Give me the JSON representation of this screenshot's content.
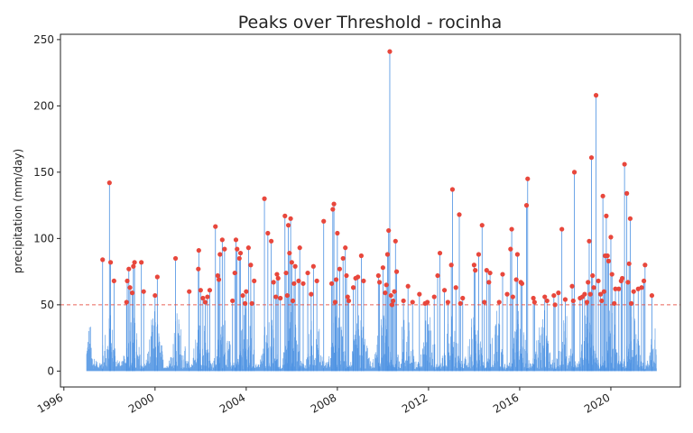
{
  "chart_data": {
    "type": "line",
    "title": "Peaks over Threshold - rocinha",
    "xlabel": "",
    "ylabel": "precipitation (mm/day)",
    "xlim": [
      1995.85,
      2023.05
    ],
    "ylim": [
      -12,
      254
    ],
    "x_ticks": [
      1996,
      2000,
      2004,
      2008,
      2012,
      2016,
      2020
    ],
    "x_tick_labels": [
      "1996",
      "2000",
      "2004",
      "2008",
      "2012",
      "2016",
      "2020"
    ],
    "y_ticks": [
      0,
      50,
      100,
      150,
      200,
      250
    ],
    "y_tick_labels": [
      "0",
      "50",
      "100",
      "150",
      "200",
      "250"
    ],
    "grid": false,
    "threshold": 50,
    "series": [
      {
        "kind": "daily-precipitation",
        "color": "#4a90e2",
        "x_range": [
          1997.0,
          2022.0
        ],
        "y_range": [
          0,
          50
        ]
      },
      {
        "kind": "peaks-over-threshold",
        "color": "#e8473c",
        "points": [
          [
            1997.7,
            84
          ],
          [
            1998.0,
            142
          ],
          [
            1998.05,
            82
          ],
          [
            1998.2,
            68
          ],
          [
            1998.75,
            52
          ],
          [
            1998.78,
            68
          ],
          [
            1998.85,
            77
          ],
          [
            1998.9,
            63
          ],
          [
            1999.0,
            59
          ],
          [
            1999.05,
            79
          ],
          [
            1999.1,
            82
          ],
          [
            1999.4,
            82
          ],
          [
            1999.5,
            60
          ],
          [
            2000.0,
            57
          ],
          [
            2000.1,
            71
          ],
          [
            2000.9,
            85
          ],
          [
            2001.5,
            60
          ],
          [
            2001.9,
            77
          ],
          [
            2001.92,
            91
          ],
          [
            2002.0,
            61
          ],
          [
            2002.1,
            55
          ],
          [
            2002.2,
            52
          ],
          [
            2002.3,
            56
          ],
          [
            2002.4,
            61
          ],
          [
            2002.65,
            109
          ],
          [
            2002.75,
            72
          ],
          [
            2002.8,
            69
          ],
          [
            2002.85,
            88
          ],
          [
            2002.95,
            99
          ],
          [
            2003.05,
            92
          ],
          [
            2003.4,
            53
          ],
          [
            2003.5,
            74
          ],
          [
            2003.55,
            99
          ],
          [
            2003.6,
            92
          ],
          [
            2003.7,
            85
          ],
          [
            2003.75,
            89
          ],
          [
            2003.85,
            57
          ],
          [
            2003.95,
            51
          ],
          [
            2004.0,
            60
          ],
          [
            2004.2,
            80
          ],
          [
            2004.1,
            93
          ],
          [
            2004.25,
            51
          ],
          [
            2004.35,
            68
          ],
          [
            2004.8,
            130
          ],
          [
            2004.95,
            104
          ],
          [
            2005.1,
            98
          ],
          [
            2005.2,
            67
          ],
          [
            2005.3,
            56
          ],
          [
            2005.35,
            73
          ],
          [
            2005.4,
            70
          ],
          [
            2005.5,
            55
          ],
          [
            2005.7,
            117
          ],
          [
            2005.75,
            74
          ],
          [
            2005.8,
            57
          ],
          [
            2005.85,
            110
          ],
          [
            2005.9,
            89
          ],
          [
            2005.95,
            115
          ],
          [
            2006.0,
            82
          ],
          [
            2006.05,
            53
          ],
          [
            2006.1,
            66
          ],
          [
            2006.15,
            79
          ],
          [
            2006.3,
            68
          ],
          [
            2006.35,
            93
          ],
          [
            2006.5,
            66
          ],
          [
            2006.7,
            74
          ],
          [
            2006.85,
            58
          ],
          [
            2006.95,
            79
          ],
          [
            2007.1,
            68
          ],
          [
            2007.4,
            113
          ],
          [
            2007.75,
            66
          ],
          [
            2007.8,
            122
          ],
          [
            2007.85,
            126
          ],
          [
            2007.9,
            52
          ],
          [
            2007.95,
            69
          ],
          [
            2008.0,
            104
          ],
          [
            2008.1,
            77
          ],
          [
            2008.25,
            85
          ],
          [
            2008.35,
            93
          ],
          [
            2008.4,
            72
          ],
          [
            2008.45,
            56
          ],
          [
            2008.5,
            53
          ],
          [
            2008.7,
            63
          ],
          [
            2008.8,
            70
          ],
          [
            2008.9,
            71
          ],
          [
            2009.05,
            87
          ],
          [
            2009.15,
            68
          ],
          [
            2009.8,
            72
          ],
          [
            2009.85,
            67
          ],
          [
            2010.0,
            78
          ],
          [
            2010.1,
            59
          ],
          [
            2010.15,
            65
          ],
          [
            2010.2,
            88
          ],
          [
            2010.25,
            106
          ],
          [
            2010.3,
            241
          ],
          [
            2010.35,
            57
          ],
          [
            2010.4,
            50
          ],
          [
            2010.45,
            53
          ],
          [
            2010.5,
            60
          ],
          [
            2010.55,
            98
          ],
          [
            2010.6,
            75
          ],
          [
            2010.9,
            53
          ],
          [
            2011.1,
            64
          ],
          [
            2011.3,
            52
          ],
          [
            2011.6,
            58
          ],
          [
            2011.85,
            51
          ],
          [
            2011.95,
            52
          ],
          [
            2012.25,
            56
          ],
          [
            2012.4,
            72
          ],
          [
            2012.5,
            89
          ],
          [
            2012.7,
            61
          ],
          [
            2012.85,
            52
          ],
          [
            2013.0,
            80
          ],
          [
            2013.05,
            137
          ],
          [
            2013.2,
            63
          ],
          [
            2013.35,
            118
          ],
          [
            2013.4,
            51
          ],
          [
            2013.5,
            55
          ],
          [
            2014.0,
            80
          ],
          [
            2014.05,
            76
          ],
          [
            2014.2,
            88
          ],
          [
            2014.35,
            110
          ],
          [
            2014.45,
            52
          ],
          [
            2014.55,
            76
          ],
          [
            2014.65,
            67
          ],
          [
            2014.7,
            74
          ],
          [
            2015.1,
            52
          ],
          [
            2015.25,
            73
          ],
          [
            2015.45,
            58
          ],
          [
            2015.6,
            92
          ],
          [
            2015.65,
            107
          ],
          [
            2015.7,
            56
          ],
          [
            2015.85,
            69
          ],
          [
            2015.9,
            88
          ],
          [
            2016.05,
            67
          ],
          [
            2016.1,
            66
          ],
          [
            2016.3,
            125
          ],
          [
            2016.35,
            145
          ],
          [
            2016.6,
            55
          ],
          [
            2016.65,
            52
          ],
          [
            2017.1,
            56
          ],
          [
            2017.2,
            53
          ],
          [
            2017.5,
            57
          ],
          [
            2017.55,
            50
          ],
          [
            2017.7,
            59
          ],
          [
            2017.85,
            107
          ],
          [
            2018.0,
            54
          ],
          [
            2018.3,
            64
          ],
          [
            2018.35,
            53
          ],
          [
            2018.4,
            150
          ],
          [
            2018.65,
            55
          ],
          [
            2018.75,
            56
          ],
          [
            2018.85,
            58
          ],
          [
            2018.95,
            52
          ],
          [
            2019.0,
            67
          ],
          [
            2019.05,
            98
          ],
          [
            2019.1,
            58
          ],
          [
            2019.15,
            161
          ],
          [
            2019.2,
            72
          ],
          [
            2019.25,
            63
          ],
          [
            2019.35,
            208
          ],
          [
            2019.45,
            68
          ],
          [
            2019.55,
            58
          ],
          [
            2019.6,
            53
          ],
          [
            2019.65,
            132
          ],
          [
            2019.7,
            60
          ],
          [
            2019.75,
            87
          ],
          [
            2019.8,
            117
          ],
          [
            2019.85,
            87
          ],
          [
            2019.9,
            83
          ],
          [
            2020.0,
            101
          ],
          [
            2020.05,
            73
          ],
          [
            2020.15,
            51
          ],
          [
            2020.2,
            62
          ],
          [
            2020.35,
            62
          ],
          [
            2020.45,
            68
          ],
          [
            2020.5,
            70
          ],
          [
            2020.6,
            156
          ],
          [
            2020.7,
            134
          ],
          [
            2020.75,
            67
          ],
          [
            2020.85,
            115
          ],
          [
            2020.8,
            81
          ],
          [
            2020.9,
            51
          ],
          [
            2021.0,
            60
          ],
          [
            2021.2,
            62
          ],
          [
            2021.35,
            63
          ],
          [
            2021.45,
            68
          ],
          [
            2021.5,
            80
          ],
          [
            2021.8,
            57
          ]
        ]
      }
    ]
  }
}
